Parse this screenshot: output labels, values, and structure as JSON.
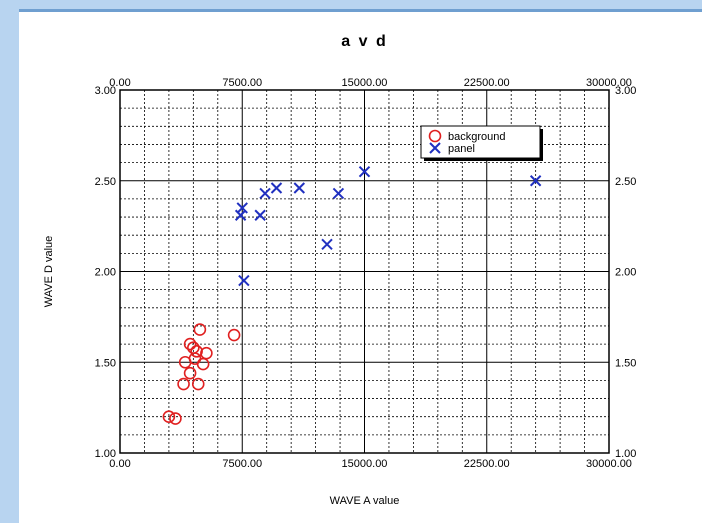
{
  "chart_data": {
    "type": "scatter",
    "title": "a v d",
    "xlabel": "WAVE A value",
    "ylabel": "WAVE D value",
    "xlim": [
      0,
      30000
    ],
    "ylim": [
      1.0,
      3.0
    ],
    "x_ticks": [
      0,
      7500,
      15000,
      22500,
      30000
    ],
    "x_tick_labels": [
      "0.00",
      "7500.00",
      "15000.00",
      "22500.00",
      "30000.00"
    ],
    "y_ticks": [
      1.0,
      1.5,
      2.0,
      2.5,
      3.0
    ],
    "y_tick_labels": [
      "1.00",
      "1.50",
      "2.00",
      "2.50",
      "3.00"
    ],
    "grid": true,
    "legend_position": "top-right",
    "series": [
      {
        "name": "background",
        "marker": "circle",
        "color": "#e02020",
        "points": [
          [
            4900,
            1.68
          ],
          [
            7000,
            1.65
          ],
          [
            4300,
            1.6
          ],
          [
            4500,
            1.58
          ],
          [
            4700,
            1.56
          ],
          [
            5300,
            1.55
          ],
          [
            4600,
            1.52
          ],
          [
            4000,
            1.5
          ],
          [
            5100,
            1.49
          ],
          [
            4300,
            1.44
          ],
          [
            3900,
            1.38
          ],
          [
            4800,
            1.38
          ],
          [
            3000,
            1.2
          ],
          [
            3400,
            1.19
          ]
        ]
      },
      {
        "name": "panel",
        "marker": "x",
        "color": "#2030c0",
        "points": [
          [
            7500,
            2.35
          ],
          [
            7400,
            2.31
          ],
          [
            8600,
            2.31
          ],
          [
            8900,
            2.43
          ],
          [
            9600,
            2.46
          ],
          [
            11000,
            2.46
          ],
          [
            13400,
            2.43
          ],
          [
            15000,
            2.55
          ],
          [
            12700,
            2.15
          ],
          [
            7600,
            1.95
          ],
          [
            25500,
            2.5
          ]
        ]
      }
    ]
  }
}
